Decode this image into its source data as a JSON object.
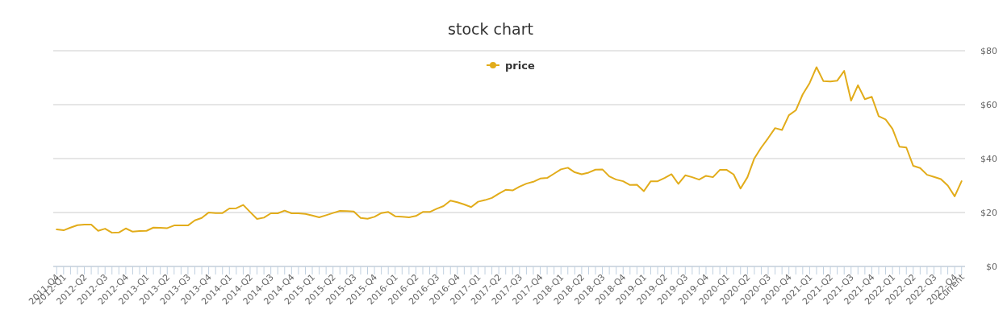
{
  "chart_data": {
    "type": "line",
    "title": "stock chart",
    "categories": [
      "2011-Q4",
      "2012-Q1",
      null,
      null,
      "2012-Q2",
      null,
      null,
      "2012-Q3",
      null,
      null,
      "2012-Q4",
      null,
      null,
      "2013-Q1",
      null,
      null,
      "2013-Q2",
      null,
      null,
      "2013-Q3",
      null,
      null,
      "2013-Q4",
      null,
      null,
      "2014-Q1",
      null,
      null,
      "2014-Q2",
      null,
      null,
      "2014-Q3",
      null,
      null,
      "2014-Q4",
      null,
      null,
      "2015-Q1",
      null,
      null,
      "2015-Q2",
      null,
      null,
      "2015-Q3",
      null,
      null,
      "2015-Q4",
      null,
      null,
      "2016-Q1",
      null,
      null,
      "2016-Q2",
      null,
      null,
      "2016-Q3",
      null,
      null,
      "2016-Q4",
      null,
      null,
      "2017-Q1",
      null,
      null,
      "2017-Q2",
      null,
      null,
      "2017-Q3",
      null,
      null,
      "2017-Q4",
      null,
      null,
      "2018-Q1",
      null,
      null,
      "2018-Q2",
      null,
      null,
      "2018-Q3",
      null,
      null,
      "2018-Q4",
      null,
      null,
      "2019-Q1",
      null,
      null,
      "2019-Q2",
      null,
      null,
      "2019-Q3",
      null,
      null,
      "2019-Q4",
      null,
      null,
      "2020-Q1",
      null,
      null,
      "2020-Q2",
      null,
      null,
      "2020-Q3",
      null,
      null,
      "2020-Q4",
      null,
      null,
      "2021-Q1",
      null,
      null,
      "2021-Q2",
      null,
      null,
      "2021-Q3",
      null,
      null,
      "2021-Q4",
      null,
      null,
      "2022-Q1",
      null,
      null,
      "2022-Q2",
      null,
      null,
      "2022-Q3",
      null,
      null,
      "2022-Q4",
      "Current"
    ],
    "series": [
      {
        "name": "price",
        "color": "#e2ac1a",
        "values": [
          13.7,
          13.4,
          14.4,
          15.3,
          15.5,
          15.5,
          13.2,
          14.0,
          12.5,
          12.6,
          14.1,
          12.9,
          13.1,
          13.2,
          14.4,
          14.3,
          14.2,
          15.2,
          15.2,
          15.2,
          17.1,
          18.0,
          20.0,
          19.8,
          19.8,
          21.5,
          21.6,
          22.8,
          20.2,
          17.6,
          18.1,
          19.7,
          19.7,
          20.7,
          19.7,
          19.7,
          19.5,
          18.9,
          18.2,
          19.0,
          19.8,
          20.6,
          20.5,
          20.4,
          18.0,
          17.7,
          18.4,
          19.8,
          20.2,
          18.6,
          18.4,
          18.2,
          18.7,
          20.2,
          20.2,
          21.4,
          22.4,
          24.4,
          23.8,
          23.0,
          22.0,
          24.0,
          24.6,
          25.4,
          27.0,
          28.4,
          28.2,
          29.6,
          30.7,
          31.4,
          32.6,
          32.8,
          34.4,
          36.0,
          36.6,
          34.9,
          34.2,
          34.8,
          35.9,
          36.0,
          33.4,
          32.2,
          31.6,
          30.2,
          30.3,
          27.9,
          31.6,
          31.6,
          32.8,
          34.2,
          30.6,
          33.8,
          33.1,
          32.2,
          33.6,
          33.1,
          35.8,
          35.8,
          34.1,
          28.9,
          33.1,
          40.1,
          44.1,
          47.6,
          51.3,
          50.6,
          56.1,
          57.9,
          63.8,
          68.0,
          73.9,
          68.7,
          68.6,
          68.9,
          72.5,
          61.5,
          67.2,
          62.0,
          62.9,
          55.7,
          54.5,
          51.0,
          44.4,
          44.1,
          37.3,
          36.5,
          34.0,
          33.2,
          32.4,
          30.0,
          26.0,
          31.6
        ]
      }
    ],
    "ylim": [
      0,
      80
    ],
    "yticks": [
      {
        "value": 0,
        "label": "$0"
      },
      {
        "value": 20,
        "label": "$20"
      },
      {
        "value": 40,
        "label": "$40"
      },
      {
        "value": 60,
        "label": "$60"
      },
      {
        "value": 80,
        "label": "$80"
      }
    ],
    "grid": "y",
    "legend": "top"
  }
}
